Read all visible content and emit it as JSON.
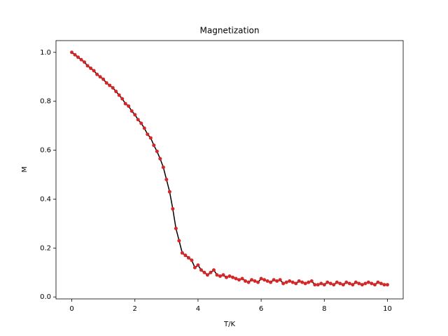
{
  "chart_data": {
    "type": "line",
    "title": "Magnetization",
    "x_label": "T/K",
    "y_label": "M",
    "x": [
      0,
      0.1,
      0.2,
      0.3,
      0.4,
      0.5,
      0.6,
      0.7,
      0.8,
      0.9,
      1,
      1.1,
      1.2,
      1.3,
      1.4,
      1.5,
      1.6,
      1.7,
      1.8,
      1.9,
      2,
      2.1,
      2.2,
      2.3,
      2.4,
      2.5,
      2.6,
      2.7,
      2.8,
      2.9,
      3,
      3.1,
      3.2,
      3.3,
      3.4,
      3.5,
      3.6,
      3.7,
      3.8,
      3.9,
      4,
      4.1,
      4.2,
      4.3,
      4.4,
      4.5,
      4.6,
      4.7,
      4.8,
      4.9,
      5,
      5.1,
      5.2,
      5.3,
      5.4,
      5.5,
      5.6,
      5.7,
      5.8,
      5.9,
      6,
      6.1,
      6.2,
      6.3,
      6.4,
      6.5,
      6.6,
      6.7,
      6.8,
      6.9,
      7,
      7.1,
      7.2,
      7.3,
      7.4,
      7.5,
      7.6,
      7.7,
      7.8,
      7.9,
      8,
      8.1,
      8.2,
      8.3,
      8.4,
      8.5,
      8.6,
      8.7,
      8.8,
      8.9,
      9,
      9.1,
      9.2,
      9.3,
      9.4,
      9.5,
      9.6,
      9.7,
      9.8,
      9.9,
      10
    ],
    "values": [
      1,
      0.99,
      0.98,
      0.97,
      0.96,
      0.945,
      0.935,
      0.925,
      0.91,
      0.9,
      0.89,
      0.875,
      0.865,
      0.855,
      0.84,
      0.825,
      0.81,
      0.79,
      0.78,
      0.76,
      0.745,
      0.725,
      0.71,
      0.69,
      0.665,
      0.65,
      0.62,
      0.595,
      0.565,
      0.53,
      0.48,
      0.43,
      0.36,
      0.28,
      0.23,
      0.18,
      0.17,
      0.16,
      0.15,
      0.12,
      0.13,
      0.11,
      0.1,
      0.09,
      0.1,
      0.11,
      0.09,
      0.085,
      0.09,
      0.08,
      0.085,
      0.08,
      0.075,
      0.07,
      0.075,
      0.065,
      0.06,
      0.07,
      0.065,
      0.06,
      0.075,
      0.07,
      0.065,
      0.06,
      0.07,
      0.065,
      0.07,
      0.055,
      0.06,
      0.065,
      0.06,
      0.055,
      0.065,
      0.06,
      0.055,
      0.06,
      0.065,
      0.05,
      0.05,
      0.055,
      0.05,
      0.06,
      0.055,
      0.05,
      0.06,
      0.055,
      0.05,
      0.06,
      0.055,
      0.05,
      0.06,
      0.055,
      0.05,
      0.055,
      0.06,
      0.055,
      0.05,
      0.06,
      0.055,
      0.05,
      0.05
    ],
    "color": "#000000",
    "marker_color": "#d62728",
    "xlim": [
      -0.5,
      10.5
    ],
    "xticks": [
      0,
      2,
      4,
      6,
      8,
      10
    ],
    "ylim": [
      -0.008,
      1.048
    ],
    "yticks": [
      {
        "value": 0,
        "label": "0.0"
      },
      0.2,
      0.4,
      0.6,
      0.8,
      {
        "value": 1,
        "label": "1.0"
      }
    ]
  }
}
